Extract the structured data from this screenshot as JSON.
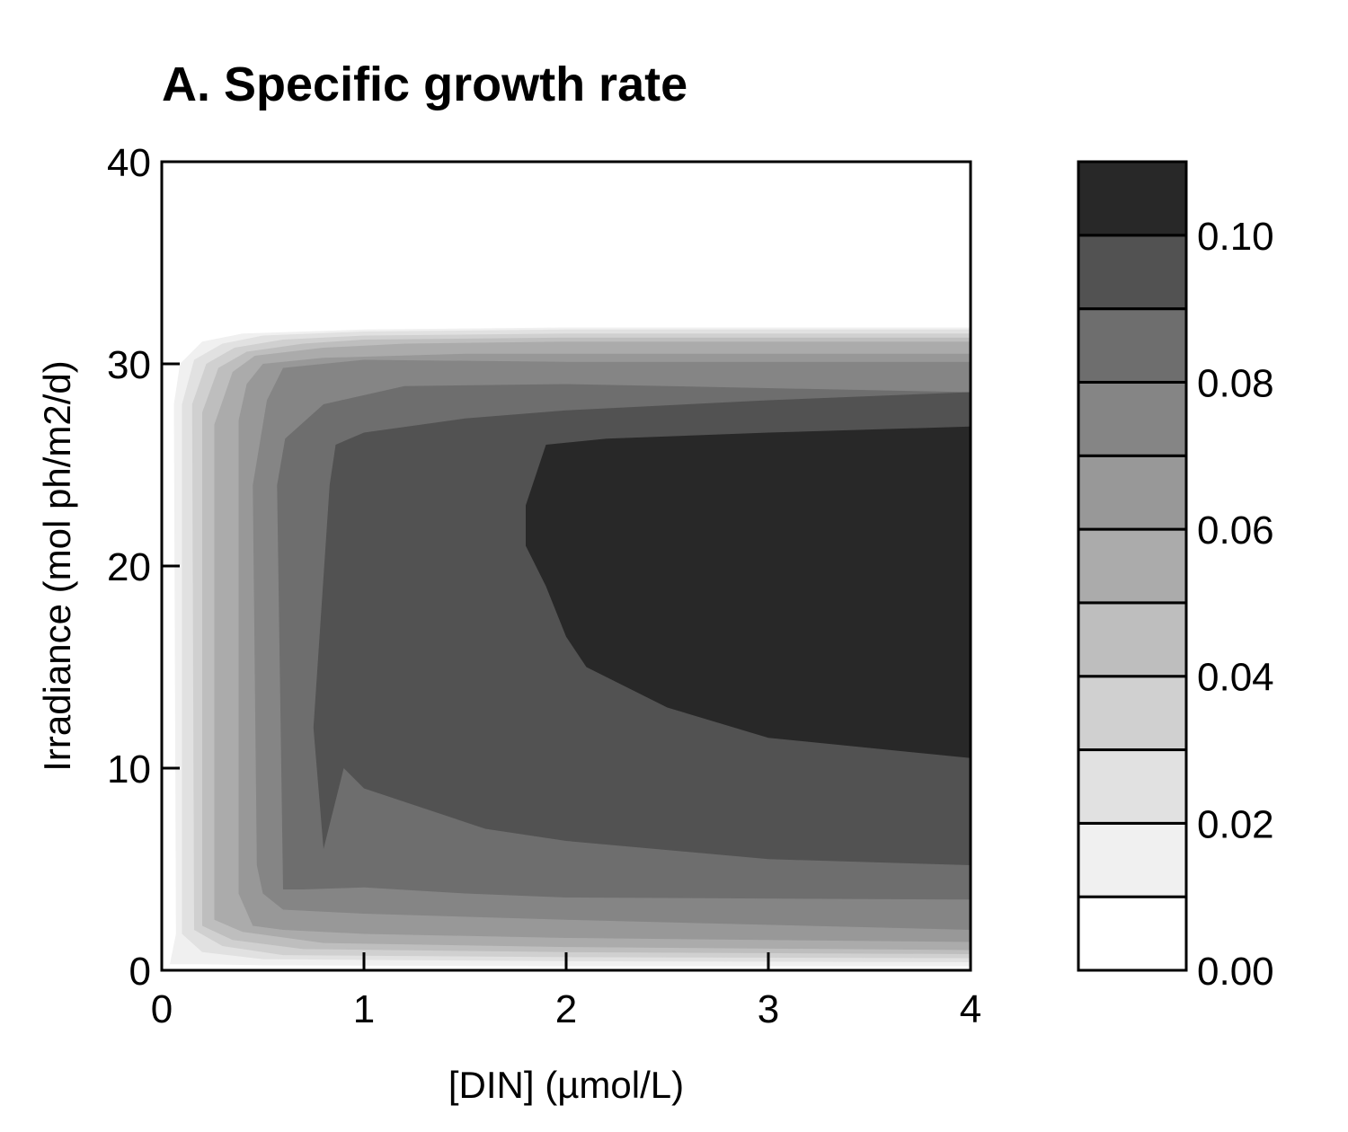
{
  "chart_data": {
    "type": "heatmap",
    "subtype": "filled-contour",
    "title": "A. Specific growth rate",
    "xlabel": "[DIN] (µmol/L)",
    "ylabel": "Irradiance (mol ph/m2/d)",
    "xlim": [
      0,
      4
    ],
    "ylim": [
      0,
      40
    ],
    "x_ticks": [
      "0",
      "1",
      "2",
      "3",
      "4"
    ],
    "y_ticks": [
      "0",
      "10",
      "20",
      "30",
      "40"
    ],
    "grid": false,
    "colorbar": {
      "placement": "right",
      "range": [
        0,
        0.11
      ],
      "levels": [
        0,
        0.01,
        0.02,
        0.03,
        0.04,
        0.05,
        0.06,
        0.07,
        0.08,
        0.09,
        0.1,
        0.11
      ],
      "tick_labels": [
        "0.00",
        "0.02",
        "0.04",
        "0.06",
        "0.08",
        "0.10"
      ],
      "tick_values": [
        0,
        0.02,
        0.04,
        0.06,
        0.08,
        0.1
      ],
      "colors": [
        "#ffffff",
        "#f0f0f0",
        "#e1e1e1",
        "#d0d0d0",
        "#bebebe",
        "#ababab",
        "#989898",
        "#858585",
        "#6e6e6e",
        "#525252",
        "#282828"
      ]
    },
    "contours": [
      {
        "level": 0.01,
        "points": [
          [
            0.04,
            0.3
          ],
          [
            0.07,
            1.8
          ],
          [
            0.06,
            28
          ],
          [
            0.09,
            30
          ],
          [
            0.2,
            31.1
          ],
          [
            0.4,
            31.5
          ],
          [
            1,
            31.7
          ],
          [
            2,
            31.8
          ],
          [
            4,
            31.8
          ],
          [
            4,
            0.2
          ],
          [
            2,
            0.2
          ],
          [
            0.5,
            0.25
          ],
          [
            0.2,
            0.3
          ]
        ]
      },
      {
        "level": 0.02,
        "points": [
          [
            0.1,
            1.8
          ],
          [
            0.1,
            28
          ],
          [
            0.16,
            30.2
          ],
          [
            0.3,
            31
          ],
          [
            0.5,
            31.4
          ],
          [
            1,
            31.6
          ],
          [
            2,
            31.7
          ],
          [
            4,
            31.7
          ],
          [
            4,
            0.4
          ],
          [
            2,
            0.45
          ],
          [
            0.5,
            0.55
          ],
          [
            0.2,
            0.9
          ]
        ]
      },
      {
        "level": 0.03,
        "points": [
          [
            0.16,
            2
          ],
          [
            0.15,
            28
          ],
          [
            0.22,
            30
          ],
          [
            0.36,
            30.8
          ],
          [
            0.6,
            31.2
          ],
          [
            1,
            31.4
          ],
          [
            2,
            31.5
          ],
          [
            4,
            31.5
          ],
          [
            4,
            0.6
          ],
          [
            2,
            0.65
          ],
          [
            0.6,
            0.75
          ],
          [
            0.3,
            1.2
          ]
        ]
      },
      {
        "level": 0.04,
        "points": [
          [
            0.2,
            2.2
          ],
          [
            0.2,
            27.6
          ],
          [
            0.28,
            29.8
          ],
          [
            0.42,
            30.6
          ],
          [
            0.7,
            31
          ],
          [
            1,
            31.2
          ],
          [
            2,
            31.3
          ],
          [
            4,
            31.3
          ],
          [
            4,
            0.8
          ],
          [
            2,
            0.9
          ],
          [
            0.7,
            1.05
          ],
          [
            0.35,
            1.5
          ]
        ]
      },
      {
        "level": 0.05,
        "points": [
          [
            0.26,
            2.5
          ],
          [
            0.26,
            27
          ],
          [
            0.35,
            29.6
          ],
          [
            0.46,
            30.4
          ],
          [
            0.8,
            30.8
          ],
          [
            1.2,
            31
          ],
          [
            2,
            31.1
          ],
          [
            4,
            31.1
          ],
          [
            4,
            1
          ],
          [
            2,
            1.15
          ],
          [
            0.8,
            1.35
          ],
          [
            0.4,
            1.9
          ]
        ]
      },
      {
        "level": 0.06,
        "points": [
          [
            0.38,
            3.8
          ],
          [
            0.38,
            27.2
          ],
          [
            0.42,
            29
          ],
          [
            0.5,
            30
          ],
          [
            0.8,
            30.3
          ],
          [
            1.5,
            30.5
          ],
          [
            4,
            30.5
          ],
          [
            4,
            1.4
          ],
          [
            2,
            1.6
          ],
          [
            1,
            1.8
          ],
          [
            0.6,
            2
          ],
          [
            0.45,
            2.2
          ]
        ]
      },
      {
        "level": 0.07,
        "points": [
          [
            0.47,
            5.2
          ],
          [
            0.45,
            24
          ],
          [
            0.52,
            28.2
          ],
          [
            0.6,
            29.8
          ],
          [
            1,
            30.2
          ],
          [
            2,
            30.1
          ],
          [
            4,
            30.1
          ],
          [
            4,
            2
          ],
          [
            2,
            2.5
          ],
          [
            1,
            2.8
          ],
          [
            0.6,
            3
          ],
          [
            0.5,
            3.8
          ]
        ]
      },
      {
        "level": 0.08,
        "points": [
          [
            0.6,
            4
          ],
          [
            0.57,
            24
          ],
          [
            0.61,
            26.3
          ],
          [
            0.8,
            28
          ],
          [
            1.2,
            28.9
          ],
          [
            2,
            29
          ],
          [
            4,
            28.6
          ],
          [
            4,
            3.5
          ],
          [
            2,
            3.6
          ],
          [
            1.5,
            3.8
          ],
          [
            1,
            4.1
          ],
          [
            0.7,
            4
          ]
        ]
      },
      {
        "level": 0.09,
        "points": [
          [
            0.8,
            6
          ],
          [
            0.75,
            12
          ],
          [
            0.83,
            24
          ],
          [
            0.86,
            26
          ],
          [
            1,
            26.6
          ],
          [
            1.5,
            27.3
          ],
          [
            2,
            27.7
          ],
          [
            3,
            28.2
          ],
          [
            4,
            28.6
          ],
          [
            4,
            5.2
          ],
          [
            3,
            5.5
          ],
          [
            2,
            6.4
          ],
          [
            1.6,
            7
          ],
          [
            1.3,
            8
          ],
          [
            1,
            9
          ],
          [
            0.9,
            10
          ]
        ]
      },
      {
        "level": 0.1,
        "points": [
          [
            1.9,
            26
          ],
          [
            2.2,
            26.3
          ],
          [
            3,
            26.6
          ],
          [
            4,
            26.9
          ],
          [
            4,
            10.5
          ],
          [
            3.5,
            11
          ],
          [
            3,
            11.5
          ],
          [
            2.5,
            13
          ],
          [
            2.3,
            14
          ],
          [
            2.1,
            15
          ],
          [
            2,
            16.5
          ],
          [
            1.9,
            19
          ],
          [
            1.8,
            21
          ],
          [
            1.8,
            23
          ]
        ]
      }
    ]
  }
}
